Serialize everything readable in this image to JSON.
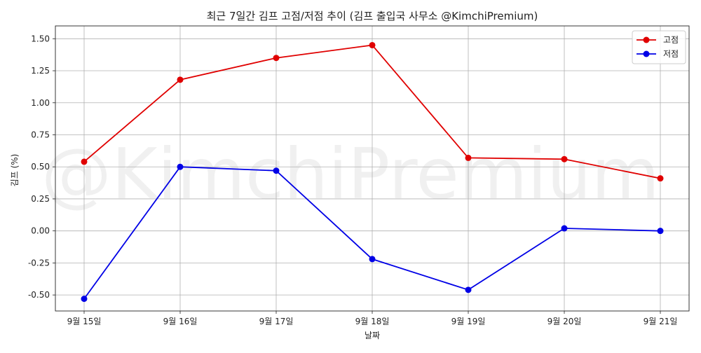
{
  "chart_data": {
    "type": "line",
    "title": "최근 7일간 김프 고점/저점 추이 (김프 출입국 사무소 @KimchiPremium)",
    "xlabel": "날짜",
    "ylabel": "김프 (%)",
    "watermark": "@KimchiPremium",
    "categories": [
      "9월 15일",
      "9월 16일",
      "9월 17일",
      "9월 18일",
      "9월 19일",
      "9월 20일",
      "9월 21일"
    ],
    "ylim": [
      -0.625,
      1.6
    ],
    "yticks": [
      -0.5,
      -0.25,
      0.0,
      0.25,
      0.5,
      0.75,
      1.0,
      1.25,
      1.5
    ],
    "ytick_labels": [
      "-0.50",
      "-0.25",
      "0.00",
      "0.25",
      "0.50",
      "0.75",
      "1.00",
      "1.25",
      "1.50"
    ],
    "grid": true,
    "legend_position": "top-right",
    "series": [
      {
        "name": "고점",
        "color": "#e00000",
        "values": [
          0.54,
          1.18,
          1.35,
          1.45,
          0.57,
          0.56,
          0.41
        ]
      },
      {
        "name": "저점",
        "color": "#0000e6",
        "values": [
          -0.53,
          0.5,
          0.47,
          -0.22,
          -0.46,
          0.02,
          0.0
        ]
      }
    ]
  }
}
